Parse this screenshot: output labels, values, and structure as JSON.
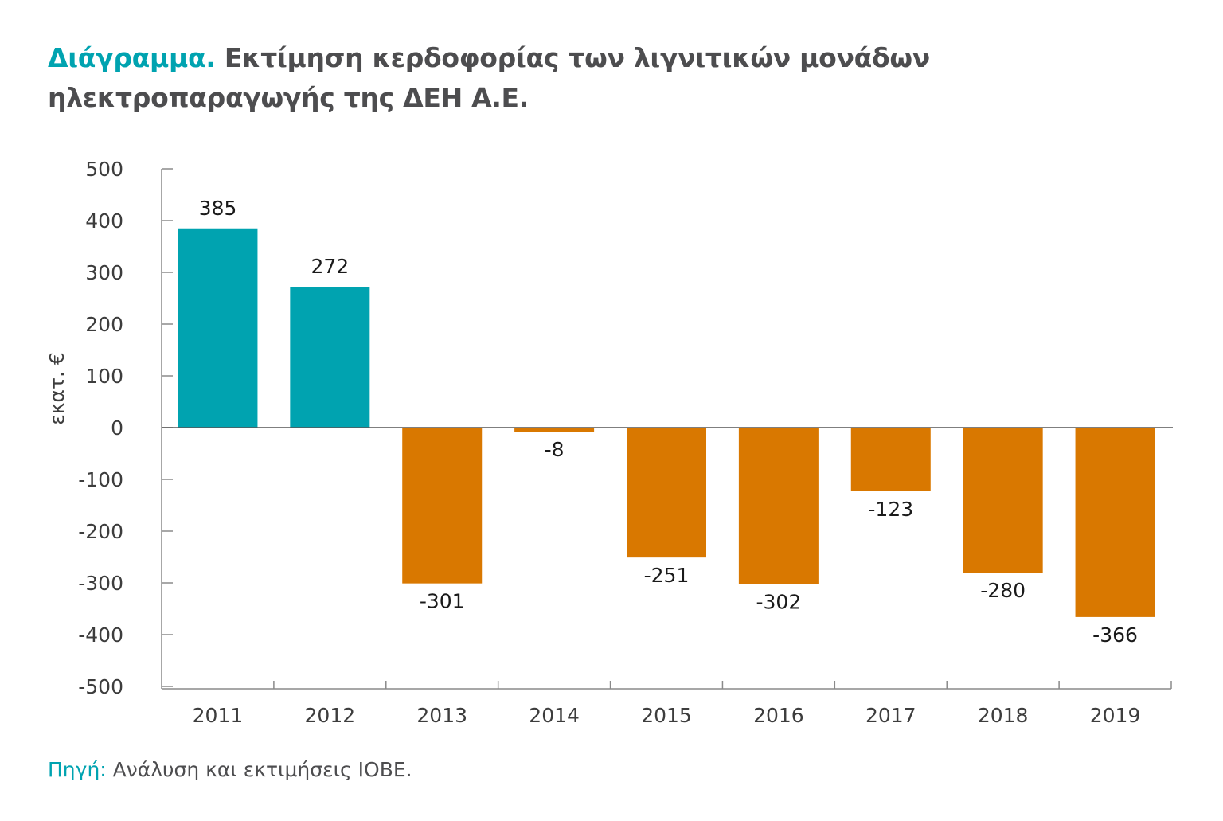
{
  "title": {
    "lead": "Διάγραμμα.",
    "text": " Εκτίμηση κερδοφορίας των λιγνιτικών μονάδων ηλεκτροπαραγωγής της ΔΕΗ Α.Ε."
  },
  "source": {
    "lead": "Πηγή:",
    "text": " Ανάλυση και εκτιμήσεις ΙΟΒΕ."
  },
  "chart_data": {
    "type": "bar",
    "title": "Εκτίμηση κερδοφορίας των λιγνιτικών μονάδων ηλεκτροπαραγωγής της ΔΕΗ Α.Ε.",
    "xlabel": "",
    "ylabel": "εκατ. €",
    "categories": [
      "2011",
      "2012",
      "2013",
      "2014",
      "2015",
      "2016",
      "2017",
      "2018",
      "2019"
    ],
    "values": [
      385,
      272,
      -301,
      -8,
      -251,
      -302,
      -123,
      -280,
      -366
    ],
    "data_labels": [
      "385",
      "272",
      "-301",
      "-8",
      "-251",
      "-302",
      "-123",
      "-280",
      "-366"
    ],
    "ylim": [
      -500,
      500
    ],
    "yticks": [
      500,
      400,
      300,
      200,
      100,
      0,
      -100,
      -200,
      -300,
      -400,
      -500
    ],
    "grid": false,
    "colors": {
      "positive": "#00a3b0",
      "negative": "#d97800"
    }
  }
}
